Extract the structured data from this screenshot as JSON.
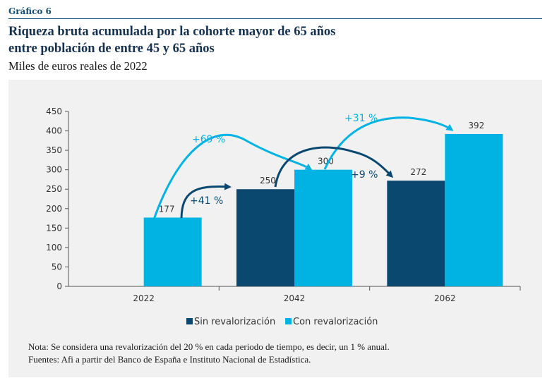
{
  "header": {
    "figure_label": "Gráfico 6",
    "title_line1": "Riqueza bruta acumulada por la cohorte mayor de 65 años",
    "title_line2": "entre población de entre 45 y 65 años",
    "subtitle": "Miles de euros reales de 2022"
  },
  "chart_data": {
    "type": "bar",
    "categories": [
      "2022",
      "2042",
      "2062"
    ],
    "series": [
      {
        "name": "Sin revalorización",
        "values": [
          null,
          250,
          272
        ],
        "color": "#0b4870"
      },
      {
        "name": "Con revalorización",
        "values": [
          177,
          300,
          392
        ],
        "color": "#00b3e3"
      }
    ],
    "data_labels": [
      "177",
      "250",
      "300",
      "272",
      "392"
    ],
    "yticks": [
      "0",
      "50",
      "100",
      "150",
      "200",
      "250",
      "300",
      "350",
      "400",
      "450"
    ],
    "ylim": [
      0,
      450
    ],
    "annotations": [
      {
        "text": "+69 %",
        "color": "#00b3e3"
      },
      {
        "text": "+41 %",
        "color": "#0b4870"
      },
      {
        "text": "+31 %",
        "color": "#00b3e3"
      },
      {
        "text": "+9 %",
        "color": "#0b4870"
      }
    ],
    "legend": [
      "Sin revalorización",
      "Con revalorización"
    ]
  },
  "notes": {
    "nota": "Nota: Se considera una revalorización del 20 % en cada periodo de tiempo, es decir, un 1 % anual.",
    "fuentes": "Fuentes: Afi a partir del Banco de España e Instituto Nacional de Estadística."
  }
}
